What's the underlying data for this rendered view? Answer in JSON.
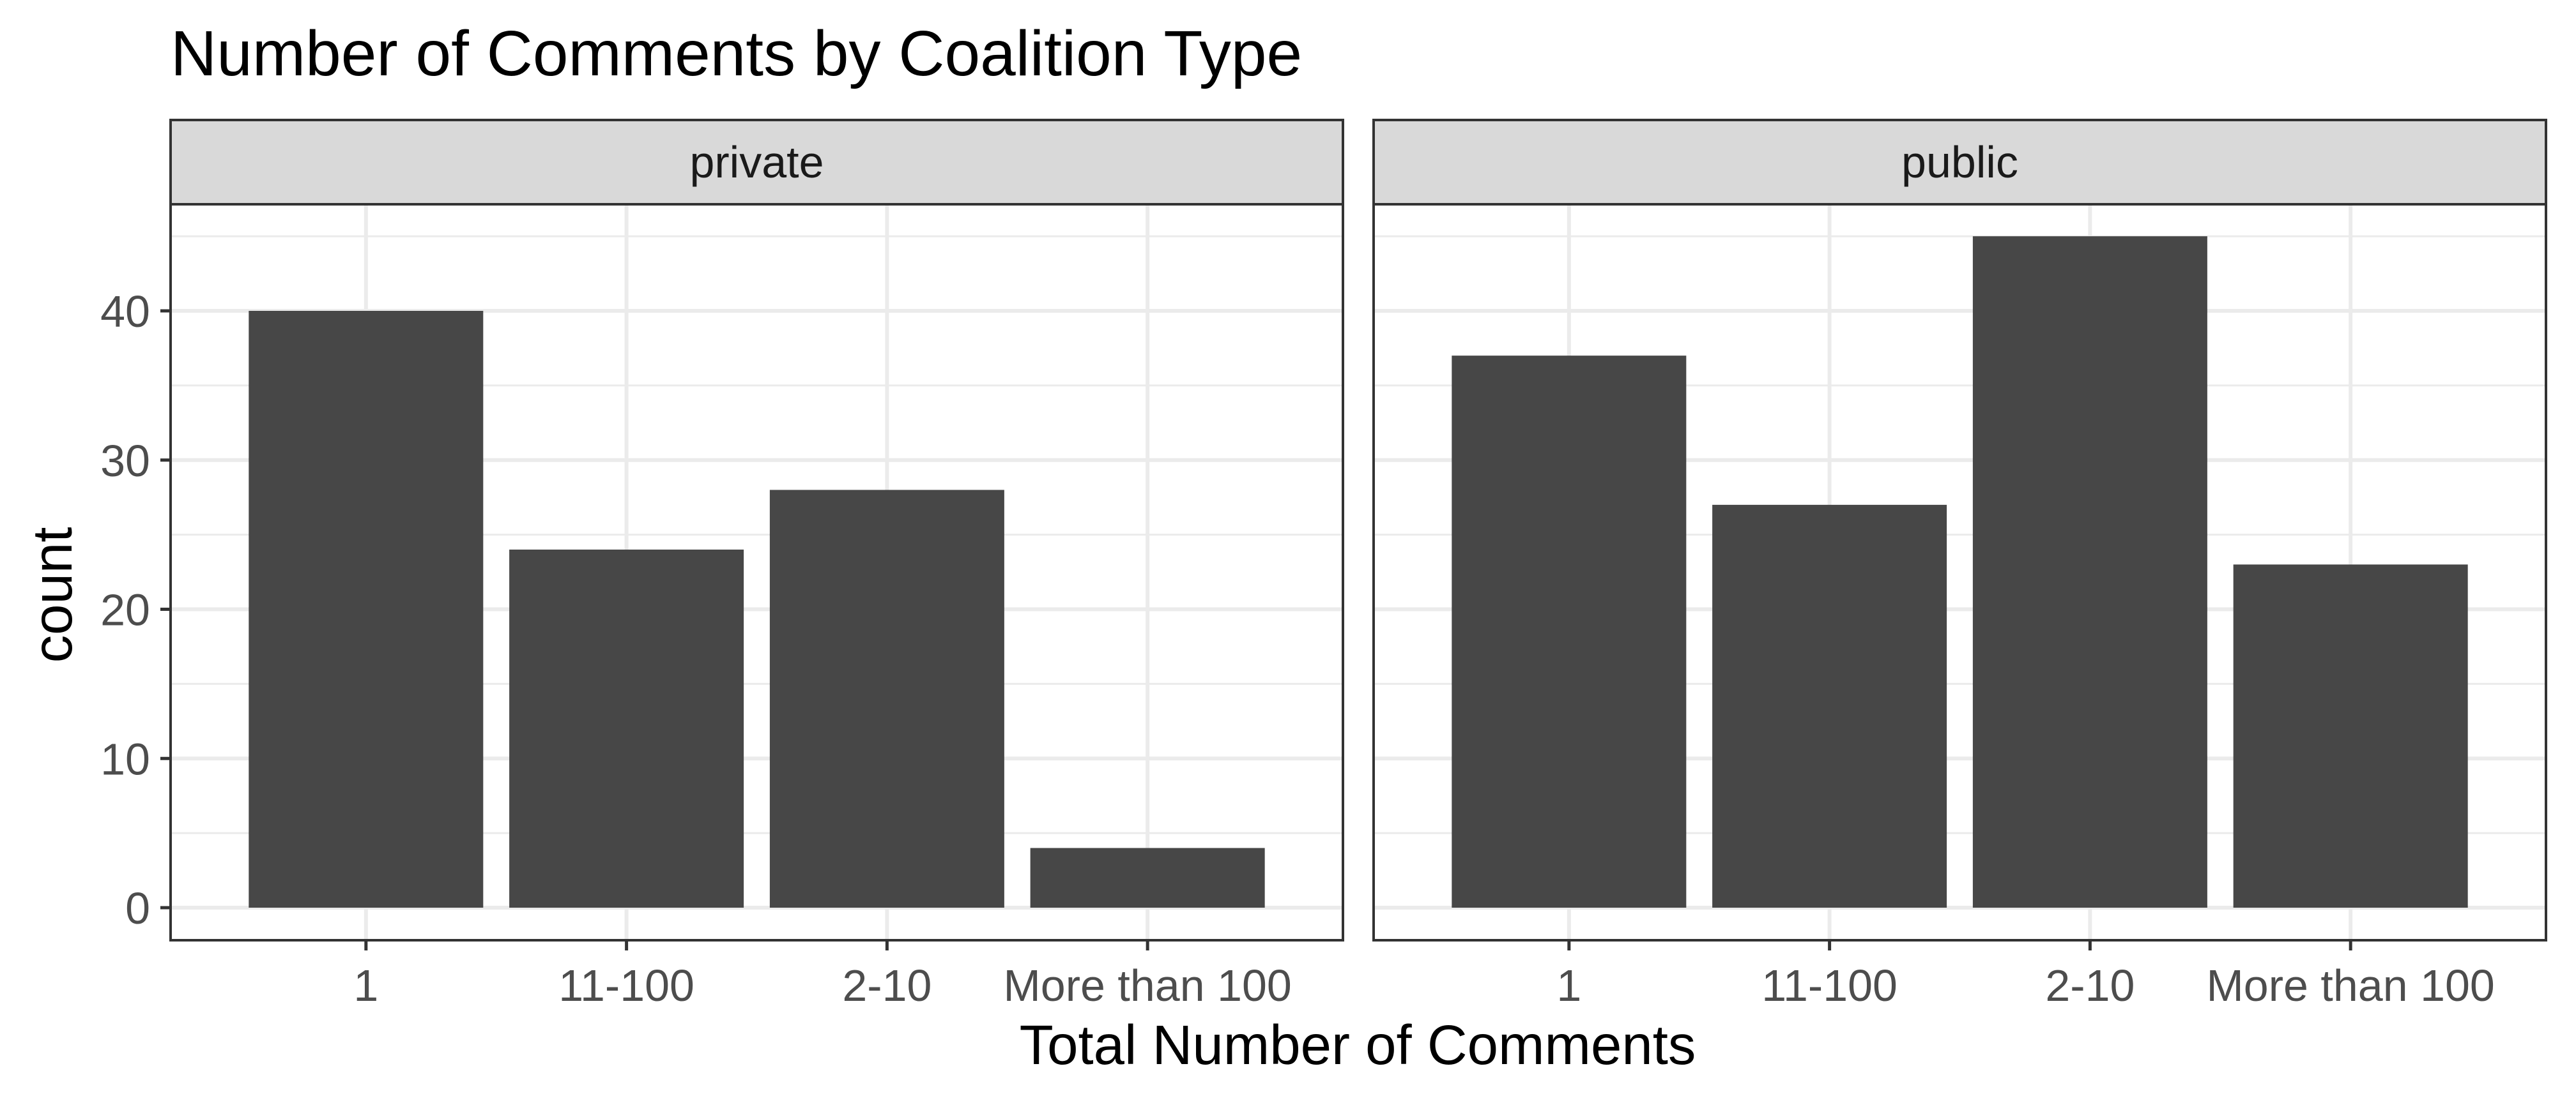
{
  "chart_data": {
    "type": "bar",
    "title": "Number of Comments by Coalition Type",
    "xlabel": "Total Number of Comments",
    "ylabel": "count",
    "categories": [
      "1",
      "11-100",
      "2-10",
      "More than 100"
    ],
    "yticks": [
      "0",
      "10",
      "20",
      "30",
      "40"
    ],
    "ylim": [
      0,
      47
    ],
    "grid": true,
    "colors": {
      "bar": "#474747",
      "strip": "#d9d9d9",
      "grid": "#ebebeb",
      "border": "#333333"
    },
    "facets": [
      {
        "name": "private",
        "values": [
          40,
          24,
          28,
          4
        ]
      },
      {
        "name": "public",
        "values": [
          37,
          27,
          45,
          23
        ]
      }
    ]
  }
}
